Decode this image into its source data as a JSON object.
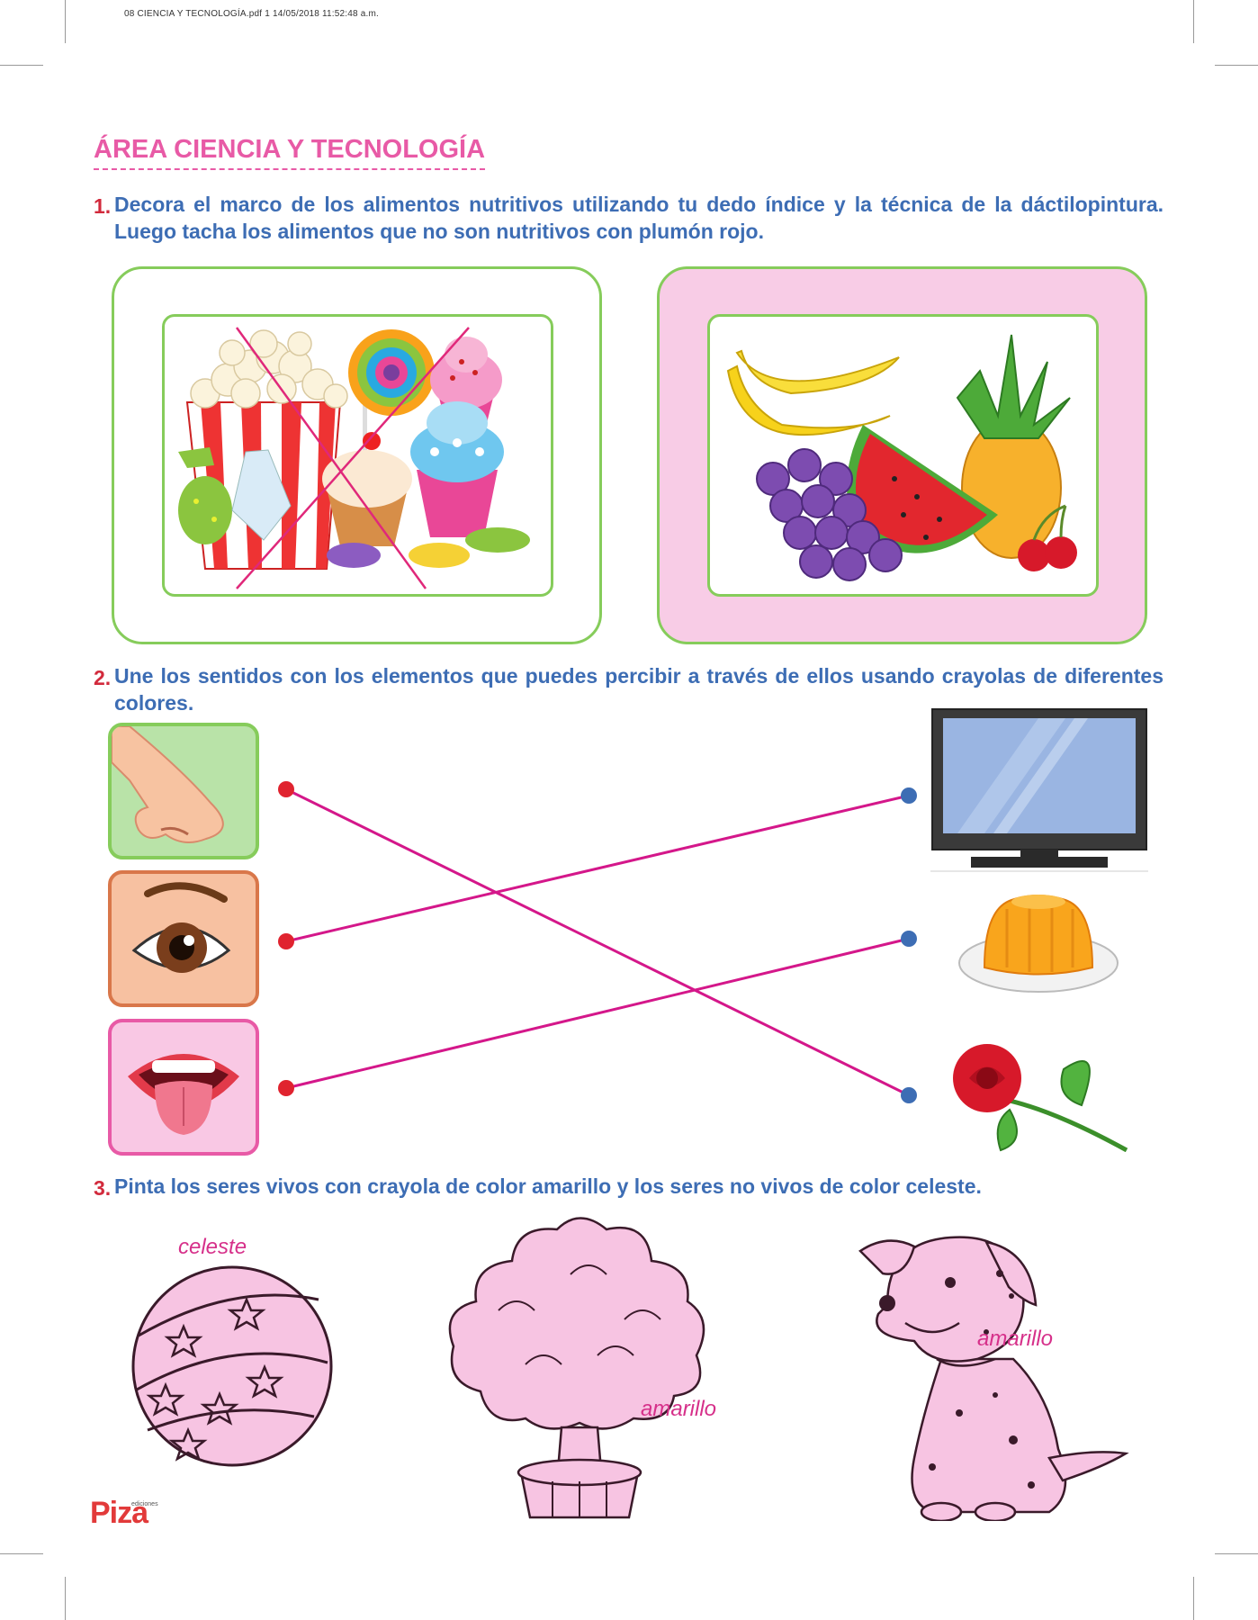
{
  "print_info": "08 CIENCIA Y TECNOLOGÍA.pdf   1   14/05/2018   11:52:48 a.m.",
  "title": "ÁREA CIENCIA Y TECNOLOGÍA",
  "questions": [
    {
      "number": "1.",
      "text": "Decora el marco de los alimentos nutritivos utilizando tu dedo índice y la técnica de la dáctilopintura. Luego tacha los alimentos que no son nutritivos con plumón rojo."
    },
    {
      "number": "2.",
      "text": "Une los sentidos con los elementos que puedes percibir a través de ellos usando crayolas de diferentes colores."
    },
    {
      "number": "3.",
      "text": "Pinta los seres vivos con crayola de color amarillo y los seres no vivos de color celeste."
    }
  ],
  "senses": [
    "nose-icon",
    "eye-icon",
    "mouth-icon"
  ],
  "items": [
    "tv-icon",
    "jelly-icon",
    "rose-icon"
  ],
  "matches": [
    {
      "sense": "nose",
      "item": "rose"
    },
    {
      "sense": "eye",
      "item": "tv"
    },
    {
      "sense": "mouth",
      "item": "jelly"
    }
  ],
  "coloring": {
    "ball_label": "celeste",
    "plant_label": "amarillo",
    "dog_label": "amarillo"
  },
  "logo": {
    "brand": "Piza",
    "sub": "ediciones"
  },
  "colors": {
    "title": "#e85aa6",
    "question_text": "#3d6db4",
    "question_number": "#d22a3c",
    "frame_green": "#86cc5b",
    "frame_pink_fill": "#f8cce6",
    "line": "#d4178a",
    "coloring_fill": "#f7c4e2"
  }
}
